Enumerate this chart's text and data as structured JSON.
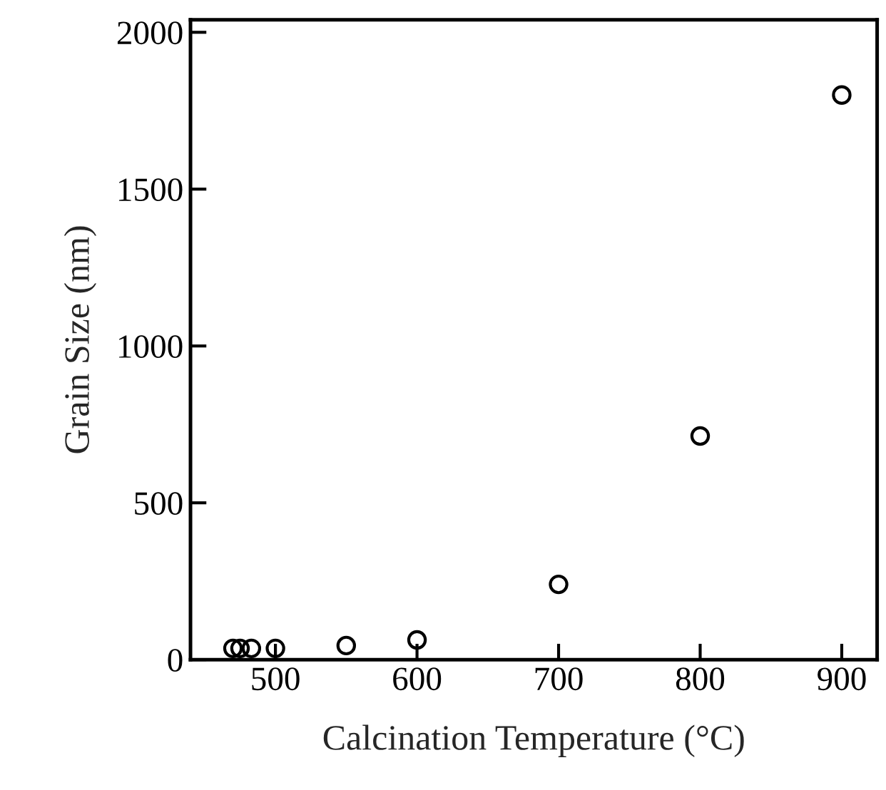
{
  "chart_data": {
    "type": "scatter",
    "xlabel": "Calcination Temperature (°C)",
    "ylabel": "Grain Size (nm)",
    "x": [
      470,
      475,
      483,
      500,
      550,
      600,
      700,
      800,
      900
    ],
    "series": [
      {
        "color": "#000000",
        "values": [
          36,
          36,
          36,
          36,
          45,
          63,
          240,
          713,
          1800
        ]
      }
    ],
    "xlim": [
      440,
      925
    ],
    "ylim": [
      0,
      2040
    ],
    "xticks": [
      500,
      600,
      700,
      800,
      900
    ],
    "yticks": [
      0,
      500,
      1000,
      1500,
      2000
    ],
    "marker": "circle",
    "grid": false,
    "legend": false
  }
}
